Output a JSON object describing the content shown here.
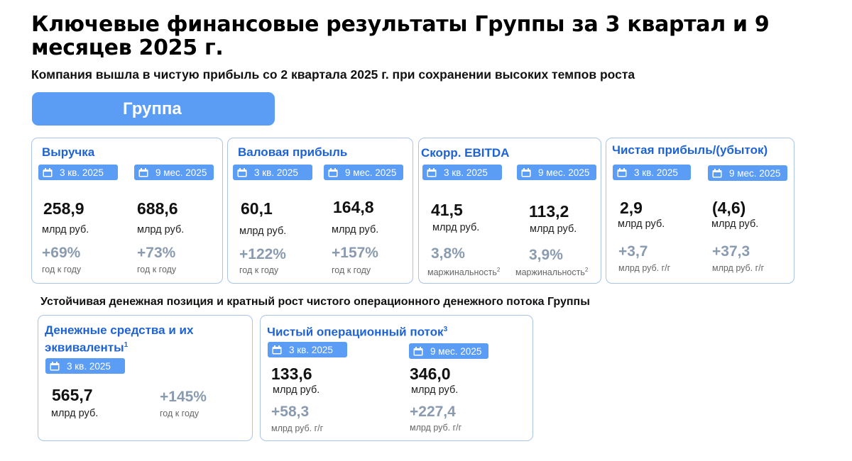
{
  "header": {
    "title": "Ключевые финансовые результаты Группы за 3 квартал и 9 месяцев 2025 г.",
    "subtitle": "Компания вышла в чистую прибыль со 2 квартала 2025 г. при сохранении высоких темпов роста",
    "group_label": "Группа"
  },
  "colors": {
    "accent": "#5b9cf5",
    "title_blue": "#1e63d6",
    "border": "#aac4e8",
    "growth_gray": "#8a9bb0"
  },
  "icons": {
    "badge_icon": "calendar-icon"
  },
  "labels": {
    "q3": "3 кв. 2025",
    "m9": "9 мес. 2025",
    "unit": "млрд руб.",
    "yoy": "год к году",
    "unit_yoy": "млрд руб. г/г",
    "margin": "маржинальность"
  },
  "cards": {
    "revenue": {
      "title": "Выручка",
      "q3_value": "258,9",
      "m9_value": "688,6",
      "q3_growth": "+69%",
      "m9_growth": "+73%"
    },
    "gross": {
      "title": "Валовая прибыль",
      "q3_value": "60,1",
      "m9_value": "164,8",
      "q3_growth": "+122%",
      "m9_growth": "+157%"
    },
    "ebitda": {
      "title": "Скорр. EBITDA",
      "q3_value": "41,5",
      "m9_value": "113,2",
      "q3_margin": "3,8%",
      "m9_margin": "3,9%",
      "footnote": "2"
    },
    "net": {
      "title": "Чистая прибыль/(убыток)",
      "q3_value": "2,9",
      "m9_value": "(4,6)",
      "q3_growth": "+3,7",
      "m9_growth": "+37,3"
    },
    "cash": {
      "title": "Денежные средства и их эквиваленты",
      "footnote": "1",
      "q3_value": "565,7",
      "q3_growth": "+145%"
    },
    "ocf": {
      "title": "Чистый операционный поток",
      "footnote": "3",
      "q3_value": "133,6",
      "m9_value": "346,0",
      "q3_growth": "+58,3",
      "m9_growth": "+227,4"
    }
  },
  "section2": {
    "title": "Устойчивая денежная позиция и кратный рост чистого операционного денежного потока Группы"
  }
}
